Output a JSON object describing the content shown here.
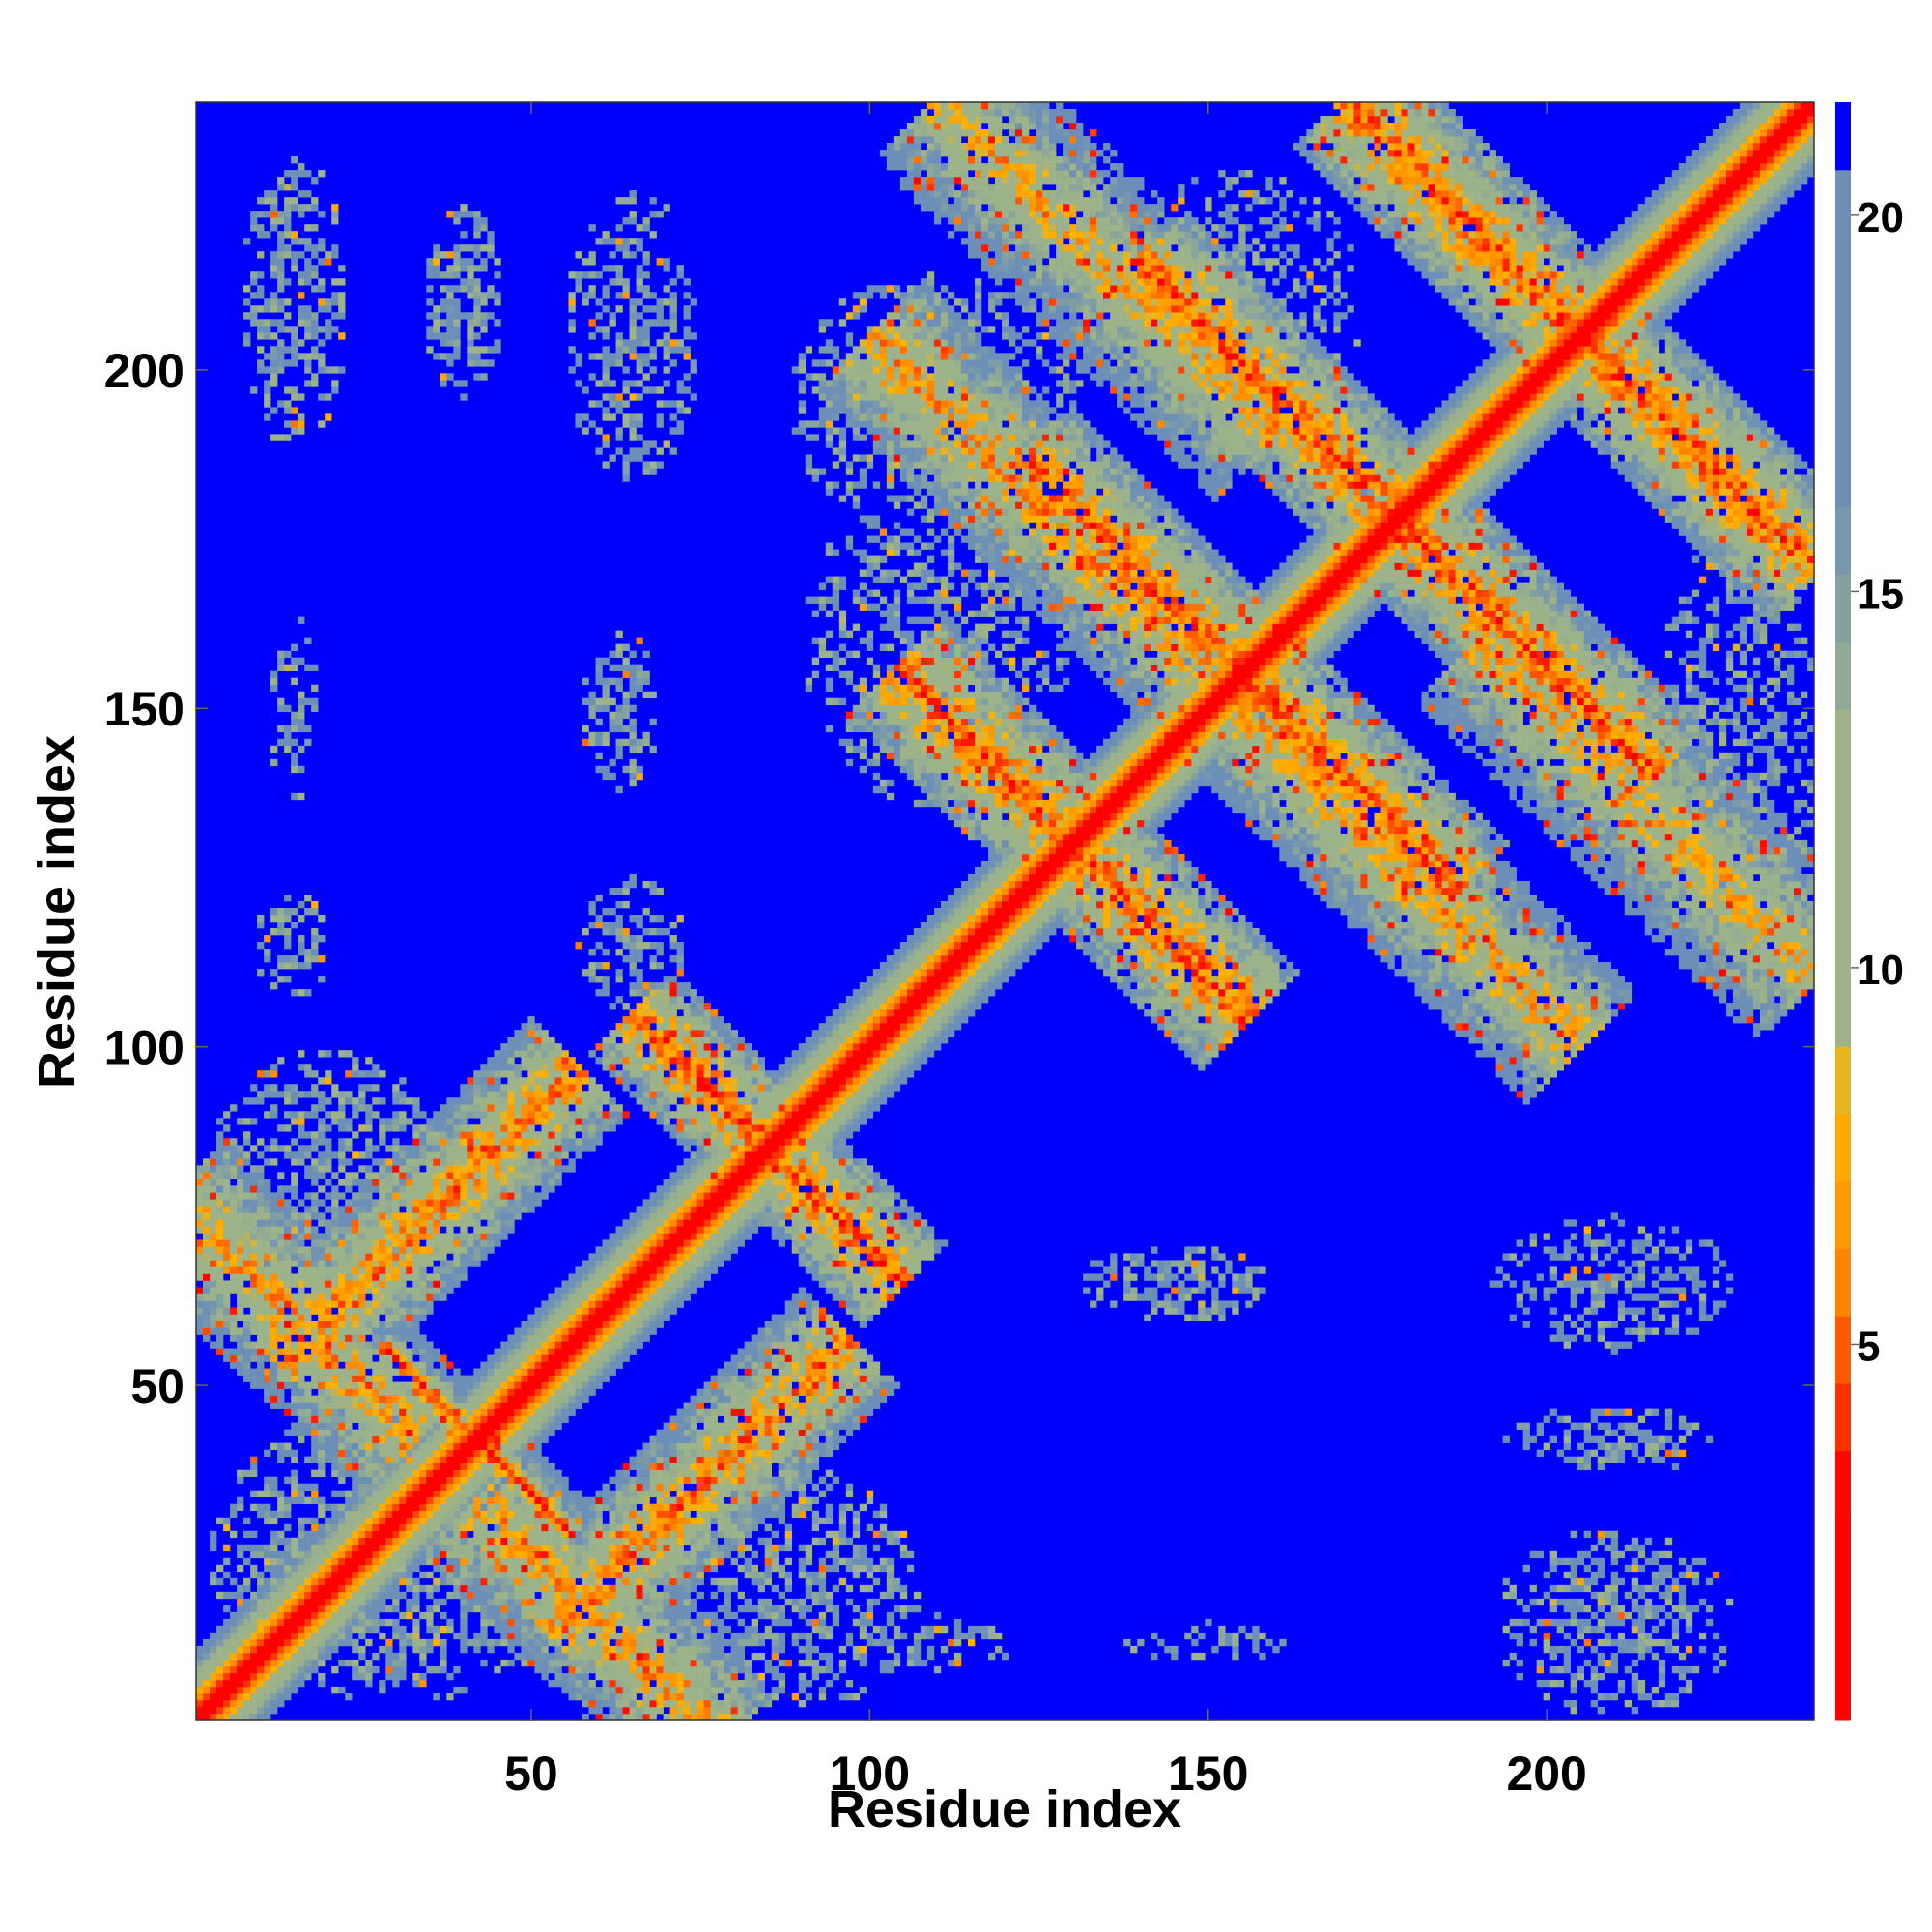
{
  "chart_data": {
    "type": "heatmap",
    "title": "",
    "xlabel": "Residue index",
    "ylabel": "Residue index",
    "xlim": [
      1,
      239
    ],
    "ylim": [
      1,
      239
    ],
    "x_ticks": [
      50,
      100,
      150,
      200
    ],
    "y_ticks": [
      50,
      100,
      150,
      200
    ],
    "colorbar": {
      "ticks": [
        5,
        10,
        15,
        20
      ],
      "min": 0,
      "max": 21.5,
      "saturation_value": 20.5,
      "colors": {
        "near": "#ff0000",
        "mid_orange": "#ff8c00",
        "gold": "#ffb400",
        "sage": "#9db38a",
        "steel": "#6c8fb8",
        "far": "#0000ff"
      }
    },
    "diagonal_width": 10,
    "contact_bands": [
      {
        "center": [
          42,
          42
        ],
        "half_length": 14,
        "half_width": 1.6,
        "orientation": "anti",
        "intensity": 7
      },
      {
        "center": [
          85,
          85
        ],
        "half_length": 20,
        "half_width": 6,
        "orientation": "anti",
        "intensity": 9
      },
      {
        "center": [
          130,
          130
        ],
        "half_length": 26,
        "half_width": 7,
        "orientation": "anti",
        "intensity": 9
      },
      {
        "center": [
          155,
          155
        ],
        "half_length": 32,
        "half_width": 7,
        "orientation": "anti",
        "intensity": 9
      },
      {
        "center": [
          178,
          178
        ],
        "half_length": 38,
        "half_width": 7,
        "orientation": "anti",
        "intensity": 9
      },
      {
        "center": [
          205,
          205
        ],
        "half_length": 35,
        "half_width": 7,
        "orientation": "anti",
        "intensity": 9
      },
      {
        "center": [
          35,
          75
        ],
        "half_length": 22,
        "half_width": 7,
        "orientation": "parallel",
        "intensity": 10
      },
      {
        "center": [
          75,
          35
        ],
        "half_length": 22,
        "half_width": 7,
        "orientation": "parallel",
        "intensity": 10
      },
      {
        "center": [
          15,
          60
        ],
        "half_length": 18,
        "half_width": 8,
        "orientation": "anti",
        "intensity": 11
      },
      {
        "center": [
          60,
          15
        ],
        "half_length": 18,
        "half_width": 8,
        "orientation": "anti",
        "intensity": 11
      },
      {
        "center": [
          130,
          175
        ],
        "half_length": 30,
        "half_width": 8,
        "orientation": "anti",
        "intensity": 11
      },
      {
        "center": [
          175,
          130
        ],
        "half_length": 30,
        "half_width": 8,
        "orientation": "anti",
        "intensity": 11
      },
      {
        "center": [
          135,
          215
        ],
        "half_length": 25,
        "half_width": 9,
        "orientation": "anti",
        "intensity": 12
      },
      {
        "center": [
          215,
          135
        ],
        "half_length": 25,
        "half_width": 9,
        "orientation": "anti",
        "intensity": 12
      }
    ],
    "contact_patches": [
      {
        "center": [
          15,
          210
        ],
        "radius": [
          8,
          22
        ],
        "density": 0.55
      },
      {
        "center": [
          40,
          210
        ],
        "radius": [
          6,
          14
        ],
        "density": 0.6
      },
      {
        "center": [
          65,
          205
        ],
        "radius": [
          10,
          22
        ],
        "density": 0.45
      },
      {
        "center": [
          15,
          150
        ],
        "radius": [
          4,
          14
        ],
        "density": 0.35
      },
      {
        "center": [
          63,
          150
        ],
        "radius": [
          6,
          12
        ],
        "density": 0.55
      },
      {
        "center": [
          15,
          115
        ],
        "radius": [
          6,
          8
        ],
        "density": 0.4
      },
      {
        "center": [
          65,
          115
        ],
        "radius": [
          8,
          10
        ],
        "density": 0.45
      },
      {
        "center": [
          145,
          65
        ],
        "radius": [
          14,
          6
        ],
        "density": 0.55
      },
      {
        "center": [
          210,
          65
        ],
        "radius": [
          18,
          10
        ],
        "density": 0.5
      },
      {
        "center": [
          210,
          42
        ],
        "radius": [
          16,
          5
        ],
        "density": 0.5
      },
      {
        "center": [
          210,
          15
        ],
        "radius": [
          18,
          14
        ],
        "density": 0.5
      },
      {
        "center": [
          150,
          12
        ],
        "radius": [
          12,
          3
        ],
        "density": 0.4
      },
      {
        "center": [
          110,
          12
        ],
        "radius": [
          12,
          4
        ],
        "density": 0.45
      },
      {
        "center": [
          110,
          195
        ],
        "radius": [
          22,
          20
        ],
        "density": 0.45
      },
      {
        "center": [
          155,
          210
        ],
        "radius": [
          18,
          20
        ],
        "density": 0.4
      },
      {
        "center": [
          90,
          20
        ],
        "radius": [
          18,
          18
        ],
        "density": 0.5
      },
      {
        "center": [
          228,
          145
        ],
        "radius": [
          12,
          32
        ],
        "density": 0.45
      },
      {
        "center": [
          110,
          160
        ],
        "radius": [
          20,
          25
        ],
        "density": 0.4
      },
      {
        "center": [
          30,
          25
        ],
        "radius": [
          28,
          22
        ],
        "density": 0.55
      },
      {
        "center": [
          20,
          80
        ],
        "radius": [
          18,
          20
        ],
        "density": 0.5
      }
    ]
  }
}
